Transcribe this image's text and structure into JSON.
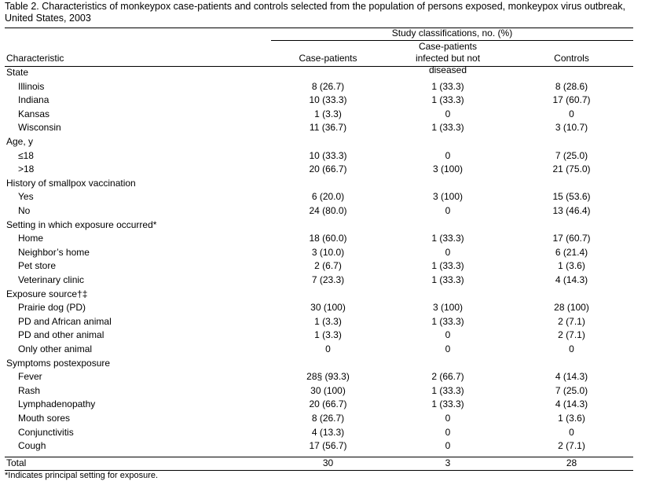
{
  "caption": "Table 2. Characteristics of monkeypox case-patients and controls selected from the population of persons exposed, monkeypox virus outbreak, United States, 2003",
  "header": {
    "span_label": "Study classifications, no. (%)",
    "characteristic": "Characteristic",
    "case_patients": "Case-patients",
    "infected_not_diseased": "Case-patients infected but not diseased",
    "controls": "Controls"
  },
  "rows": [
    {
      "label": "State",
      "indent": false,
      "c1": "",
      "c2": "",
      "c3": ""
    },
    {
      "label": "Illinois",
      "indent": true,
      "c1": "8 (26.7)",
      "c2": "1 (33.3)",
      "c3": "8 (28.6)"
    },
    {
      "label": "Indiana",
      "indent": true,
      "c1": "10 (33.3)",
      "c2": "1 (33.3)",
      "c3": "17 (60.7)"
    },
    {
      "label": "Kansas",
      "indent": true,
      "c1": "1 (3.3)",
      "c2": "0",
      "c3": "0"
    },
    {
      "label": "Wisconsin",
      "indent": true,
      "c1": "11 (36.7)",
      "c2": "1 (33.3)",
      "c3": "3 (10.7)"
    },
    {
      "label": "Age, y",
      "indent": false,
      "c1": "",
      "c2": "",
      "c3": ""
    },
    {
      "label": "≤18",
      "indent": true,
      "c1": "10 (33.3)",
      "c2": "0",
      "c3": "7 (25.0)"
    },
    {
      "label": ">18",
      "indent": true,
      "c1": "20 (66.7)",
      "c2": "3 (100)",
      "c3": "21 (75.0)"
    },
    {
      "label": "History of smallpox vaccination",
      "indent": false,
      "c1": "",
      "c2": "",
      "c3": ""
    },
    {
      "label": "Yes",
      "indent": true,
      "c1": "6 (20.0)",
      "c2": "3 (100)",
      "c3": "15 (53.6)"
    },
    {
      "label": "No",
      "indent": true,
      "c1": "24 (80.0)",
      "c2": "0",
      "c3": "13 (46.4)"
    },
    {
      "label": "Setting in which exposure occurred*",
      "indent": false,
      "c1": "",
      "c2": "",
      "c3": ""
    },
    {
      "label": "Home",
      "indent": true,
      "c1": "18 (60.0)",
      "c2": "1 (33.3)",
      "c3": "17 (60.7)"
    },
    {
      "label": "Neighbor’s home",
      "indent": true,
      "c1": "3 (10.0)",
      "c2": "0",
      "c3": "6 (21.4)"
    },
    {
      "label": "Pet store",
      "indent": true,
      "c1": "2 (6.7)",
      "c2": "1 (33.3)",
      "c3": "1 (3.6)"
    },
    {
      "label": "Veterinary clinic",
      "indent": true,
      "c1": "7 (23.3)",
      "c2": "1 (33.3)",
      "c3": "4 (14.3)"
    },
    {
      "label": "Exposure source†‡",
      "indent": false,
      "c1": "",
      "c2": "",
      "c3": ""
    },
    {
      "label": "Prairie dog (PD)",
      "indent": true,
      "c1": "30 (100)",
      "c2": "3 (100)",
      "c3": "28 (100)"
    },
    {
      "label": "PD and African animal",
      "indent": true,
      "c1": "1 (3.3)",
      "c2": "1 (33.3)",
      "c3": "2 (7.1)"
    },
    {
      "label": "PD and other animal",
      "indent": true,
      "c1": "1 (3.3)",
      "c2": "0",
      "c3": "2 (7.1)"
    },
    {
      "label": "Only other animal",
      "indent": true,
      "c1": "0",
      "c2": "0",
      "c3": "0"
    },
    {
      "label": "Symptoms postexposure",
      "indent": false,
      "c1": "",
      "c2": "",
      "c3": ""
    },
    {
      "label": "Fever",
      "indent": true,
      "c1": "28§ (93.3)",
      "c2": "2 (66.7)",
      "c3": "4 (14.3)"
    },
    {
      "label": "Rash",
      "indent": true,
      "c1": "30 (100)",
      "c2": "1 (33.3)",
      "c3": "7 (25.0)"
    },
    {
      "label": "Lymphadenopathy",
      "indent": true,
      "c1": "20 (66.7)",
      "c2": "1 (33.3)",
      "c3": "4 (14.3)"
    },
    {
      "label": "Mouth sores",
      "indent": true,
      "c1": "8 (26.7)",
      "c2": "0",
      "c3": "1 (3.6)"
    },
    {
      "label": "Conjunctivitis",
      "indent": true,
      "c1": "4 (13.3)",
      "c2": "0",
      "c3": "0"
    },
    {
      "label": "Cough",
      "indent": true,
      "c1": "17 (56.7)",
      "c2": "0",
      "c3": "2 (7.1)"
    },
    {
      "label": "Total",
      "indent": false,
      "c1": "30",
      "c2": "3",
      "c3": "28"
    }
  ],
  "footnote": "*Indicates principal setting for exposure."
}
